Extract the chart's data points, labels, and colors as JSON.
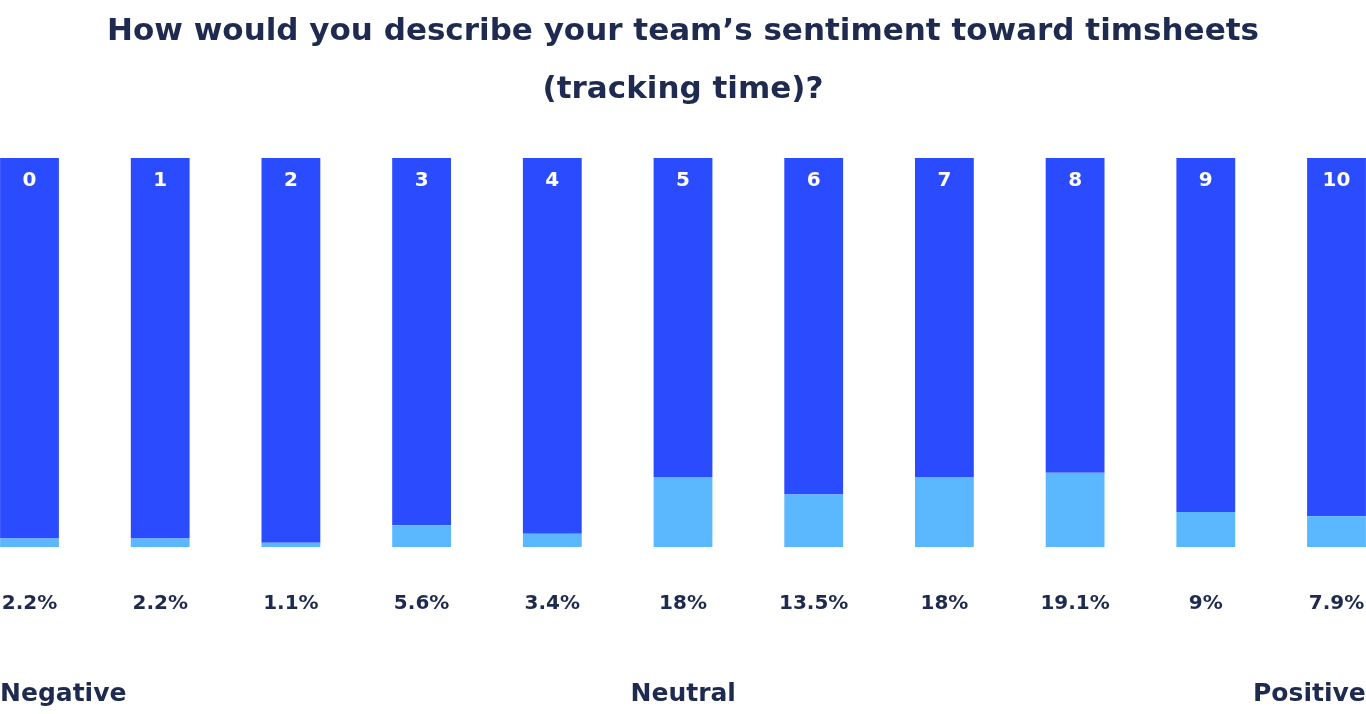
{
  "chart_data": {
    "type": "bar",
    "title": "How would you describe your team’s sentiment toward timsheets (tracking time)?",
    "categories": [
      "0",
      "1",
      "2",
      "3",
      "4",
      "5",
      "6",
      "7",
      "8",
      "9",
      "10"
    ],
    "stacked": true,
    "ylim": [
      0,
      100
    ],
    "series": [
      {
        "color": "#5bb8ff",
        "values": [
          2.2,
          2.2,
          1.1,
          5.6,
          3.4,
          18,
          13.5,
          18,
          19.1,
          9,
          7.9
        ],
        "value_labels": [
          "2.2%",
          "2.2%",
          "1.1%",
          "5.6%",
          "3.4%",
          "18%",
          "13.5%",
          "18%",
          "19.1%",
          "9%",
          "7.9%"
        ]
      },
      {
        "color": "#2b4bff",
        "values": [
          97.8,
          97.8,
          98.9,
          94.4,
          96.6,
          82,
          86.5,
          82,
          80.9,
          91,
          92.1
        ]
      }
    ],
    "annotations": [
      "Negative",
      "Neutral",
      "Positive"
    ]
  }
}
